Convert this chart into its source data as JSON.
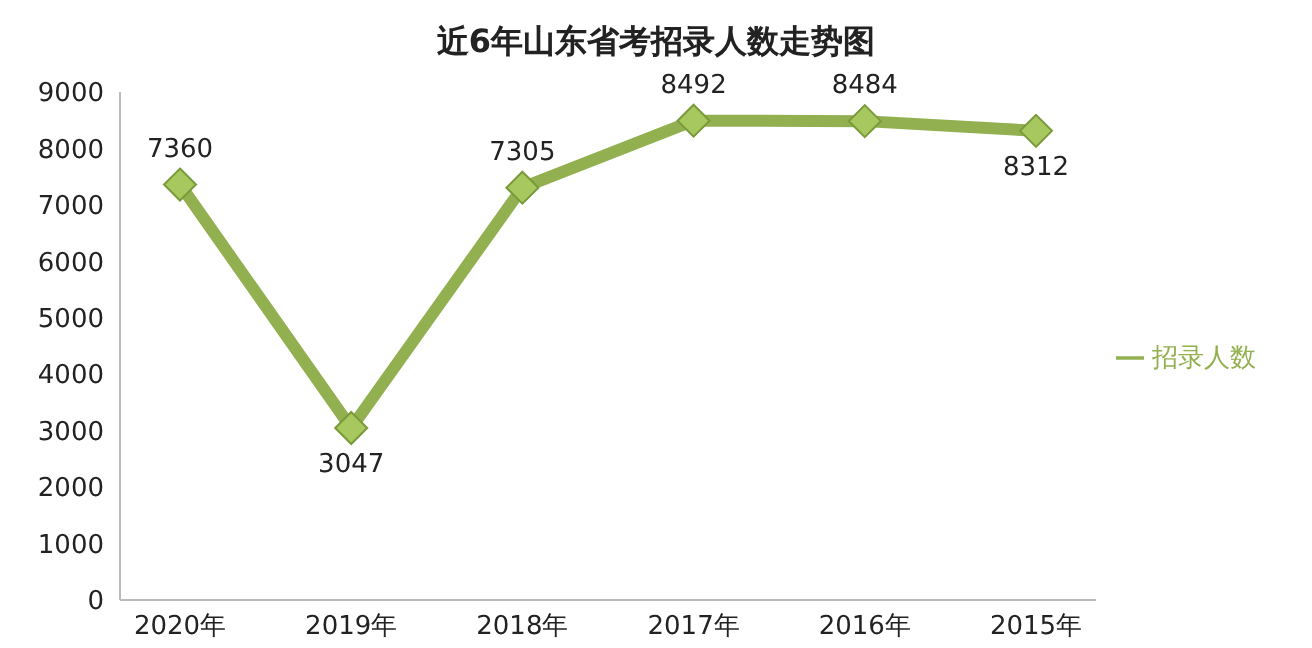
{
  "chart_data": {
    "type": "line",
    "title": "近6年山东省考招录人数走势图",
    "categories": [
      "2020年",
      "2019年",
      "2018年",
      "2017年",
      "2016年",
      "2015年"
    ],
    "series": [
      {
        "name": "招录人数",
        "color": "#92b050",
        "values": [
          7360,
          3047,
          7305,
          8492,
          8484,
          8312
        ]
      }
    ],
    "ylim": [
      0,
      9000
    ],
    "yticks": [
      0,
      1000,
      2000,
      3000,
      4000,
      5000,
      6000,
      7000,
      8000,
      9000
    ],
    "grid": false,
    "legend": "right",
    "marker": "diamond",
    "line_style": "solid",
    "data_labels": true
  }
}
